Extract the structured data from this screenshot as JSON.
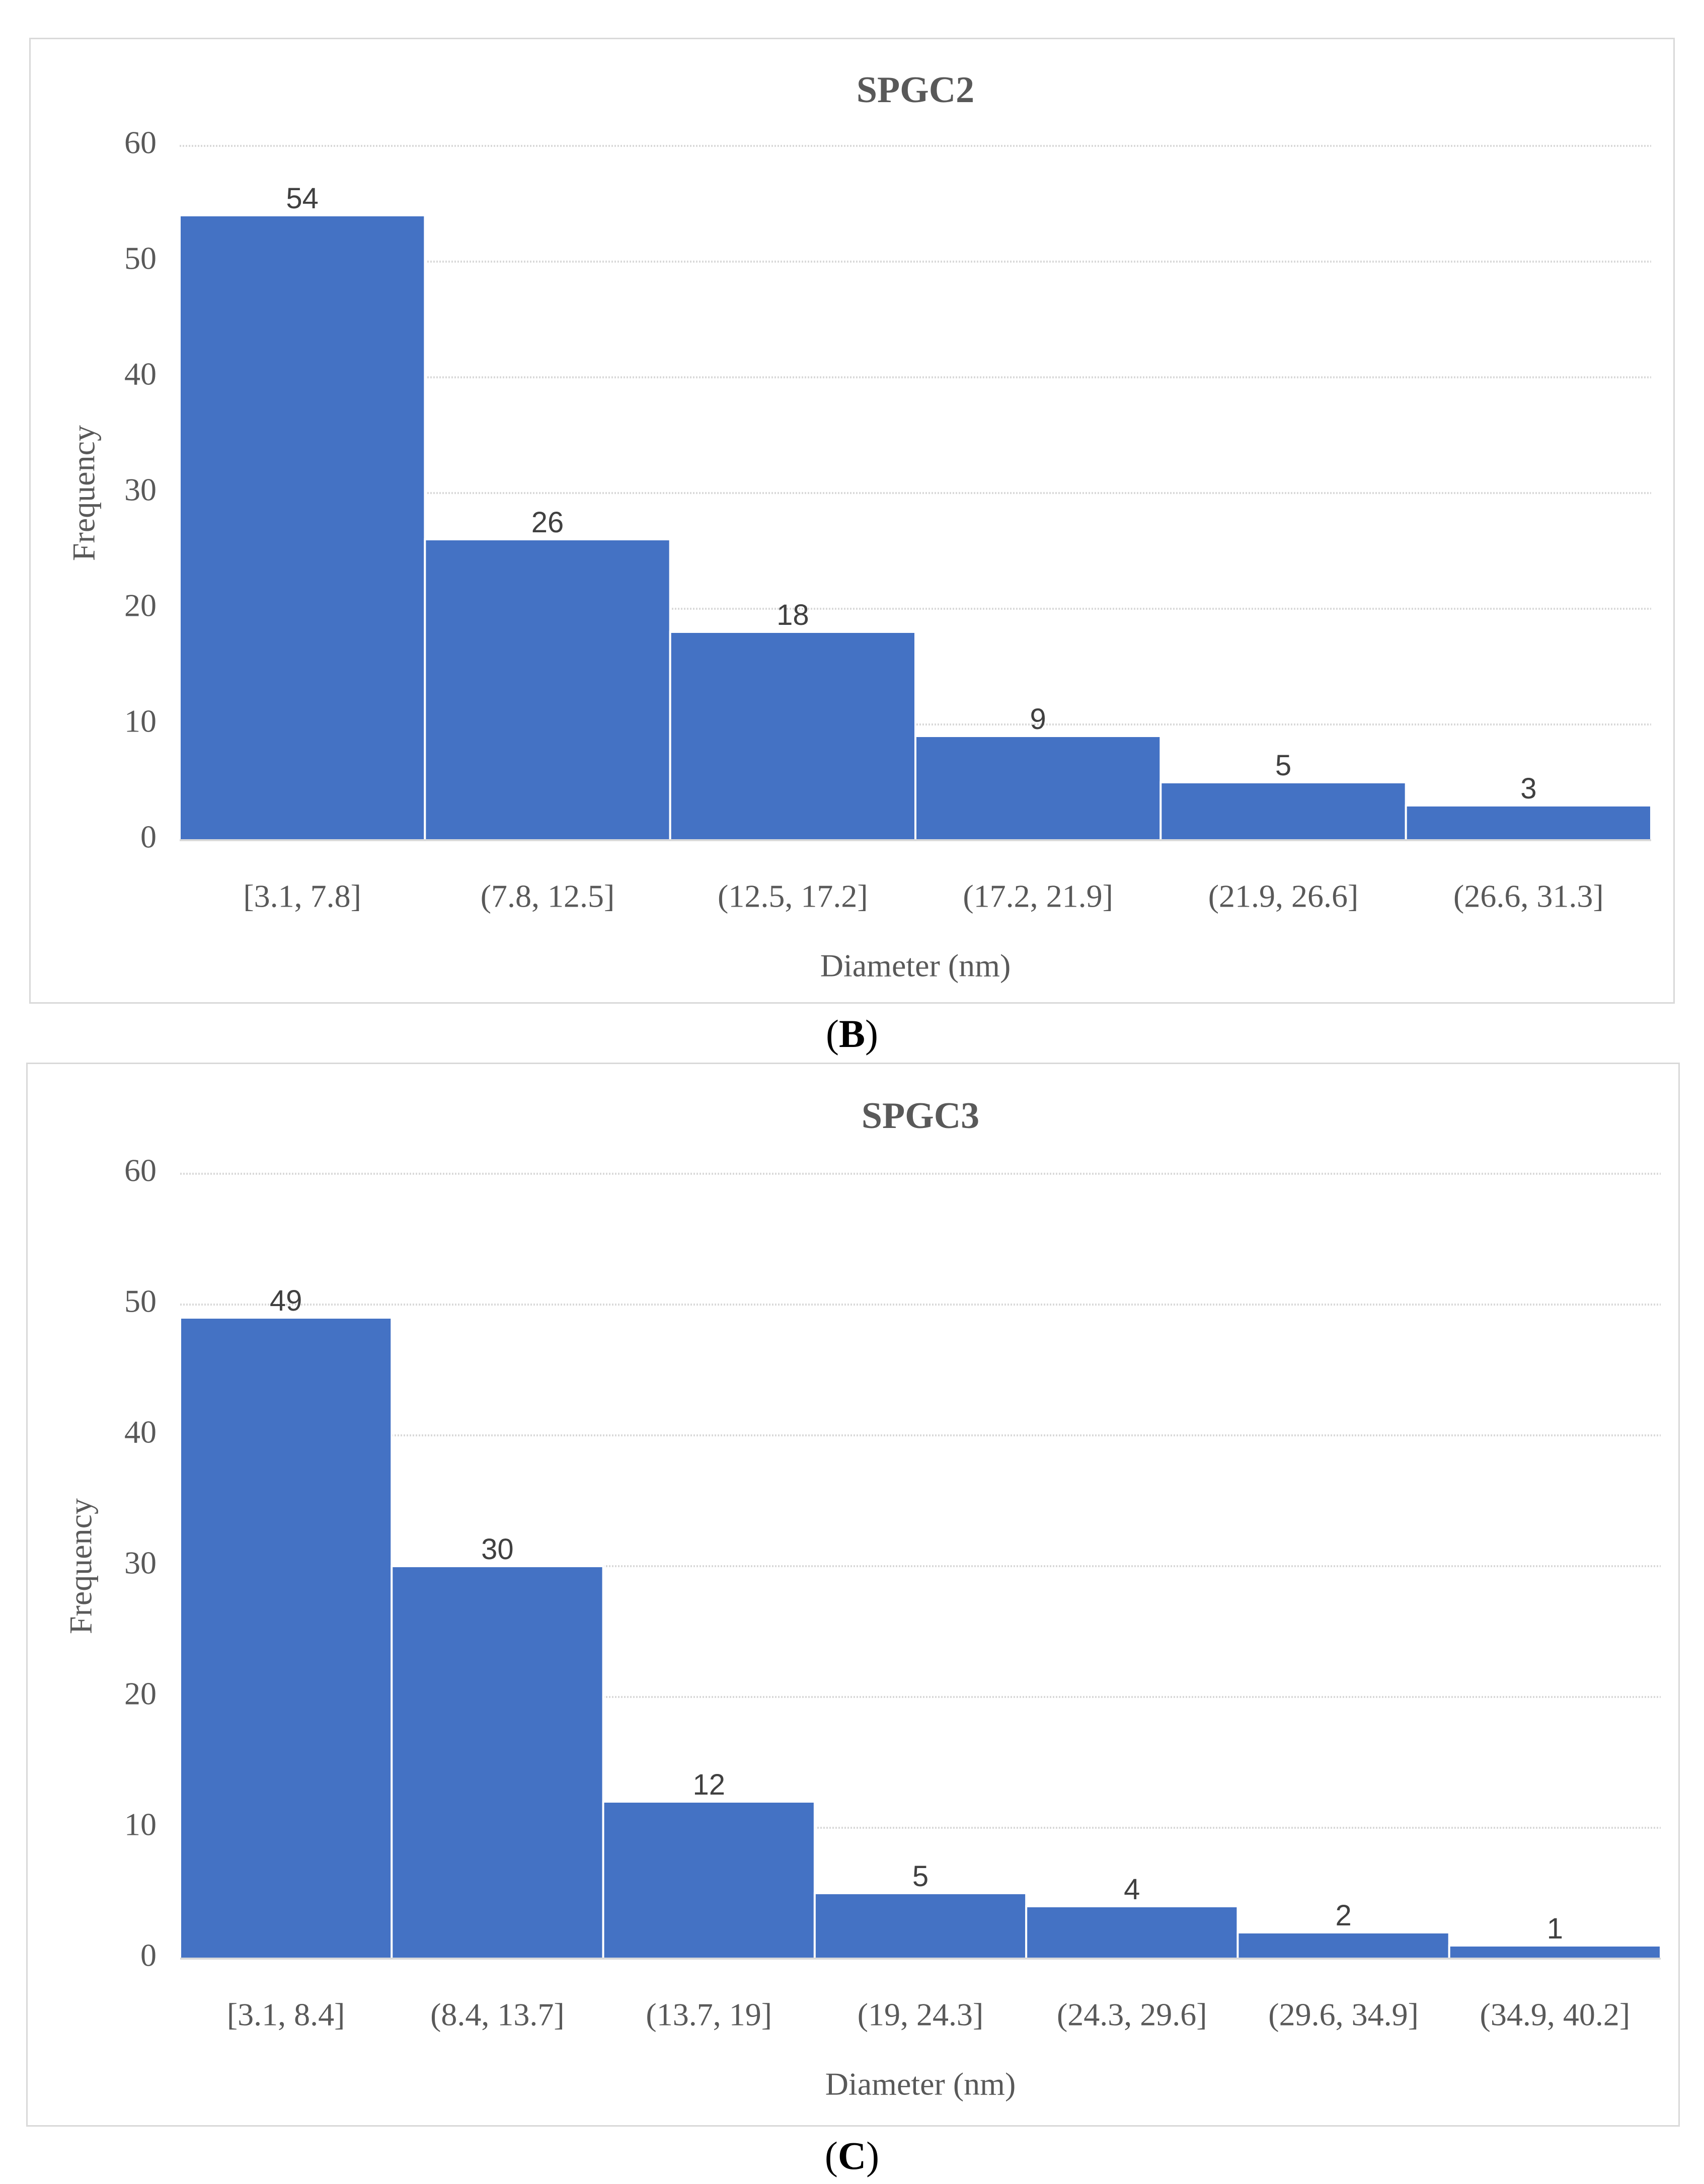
{
  "colors": {
    "bar": "#4472c4",
    "text": "#595959",
    "grid": "#d9d9d9"
  },
  "chart_data": [
    {
      "type": "bar",
      "title": "SPGC2",
      "xlabel": "Diameter (nm)",
      "ylabel": "Frequency",
      "ylim": [
        0,
        60
      ],
      "yticks": [
        0,
        10,
        20,
        30,
        40,
        50,
        60
      ],
      "categories": [
        "[3.1, 7.8]",
        "(7.8, 12.5]",
        "(12.5, 17.2]",
        "(17.2, 21.9]",
        "(21.9, 26.6]",
        "(26.6, 31.3]"
      ],
      "values": [
        54,
        26,
        18,
        9,
        5,
        3
      ],
      "grid": true,
      "caption": {
        "open": "(",
        "letter": "B",
        "close": ")"
      }
    },
    {
      "type": "bar",
      "title": "SPGC3",
      "xlabel": "Diameter (nm)",
      "ylabel": "Frequency",
      "ylim": [
        0,
        60
      ],
      "yticks": [
        0,
        10,
        20,
        30,
        40,
        50,
        60
      ],
      "categories": [
        "[3.1, 8.4]",
        "(8.4, 13.7]",
        "(13.7, 19]",
        "(19, 24.3]",
        "(24.3, 29.6]",
        "(29.6, 34.9]",
        "(34.9, 40.2]"
      ],
      "values": [
        49,
        30,
        12,
        5,
        4,
        2,
        1
      ],
      "grid": true,
      "caption": {
        "open": "(",
        "letter": "C",
        "close": ")"
      }
    }
  ]
}
